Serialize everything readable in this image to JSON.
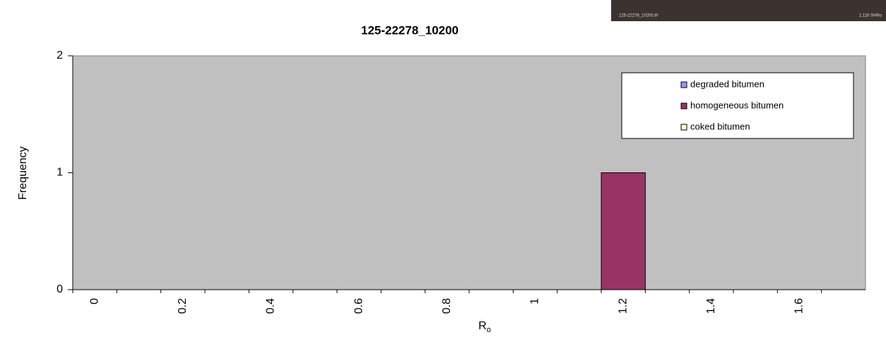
{
  "chart_data": {
    "type": "bar",
    "stacked": true,
    "title": "125-22278_10200",
    "x_label": "R",
    "x_label_sub": "o",
    "y_label": "Frequency",
    "categories": [
      "0",
      null,
      "0.2",
      null,
      "0.4",
      null,
      "0.6",
      null,
      "0.8",
      null,
      "1",
      null,
      "1.2",
      null,
      "1.4",
      null,
      "1.6",
      null
    ],
    "series": [
      {
        "name": "degraded bitumen",
        "color": "#9999ff",
        "values": [
          0,
          0,
          0,
          0,
          0,
          0,
          0,
          0,
          0,
          0,
          0,
          0,
          0,
          0,
          0,
          0,
          0,
          0
        ]
      },
      {
        "name": "homogeneous bitumen",
        "color": "#993366",
        "values": [
          0,
          0,
          0,
          0,
          0,
          0,
          0,
          0,
          0,
          0,
          0,
          0,
          1,
          0,
          0,
          0,
          0,
          0
        ]
      },
      {
        "name": "coked bitumen",
        "color": "#ffffcc",
        "values": [
          0,
          0,
          0,
          0,
          0,
          0,
          0,
          0,
          0,
          0,
          0,
          0,
          0,
          0,
          0,
          0,
          0,
          0
        ]
      }
    ],
    "ylim": [
      0,
      2
    ],
    "yticks": [
      0,
      1,
      2
    ],
    "plot_color": "#c0c0c0",
    "thumbnail": {
      "filename": "125-22278_10200.tif",
      "caption": "1.116 SHRo"
    }
  }
}
